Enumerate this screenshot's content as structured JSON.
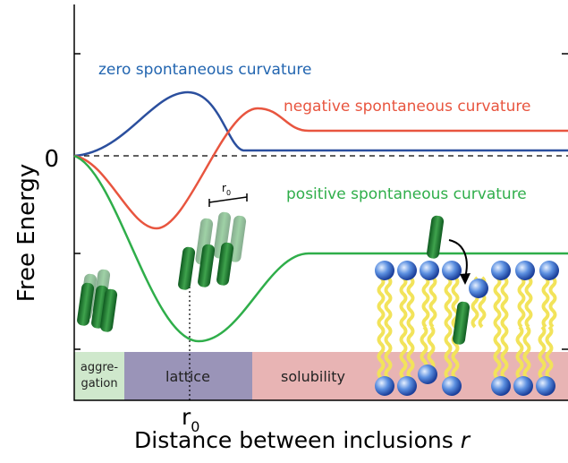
{
  "curves": {
    "zero": "zero spontaneous curvature",
    "negative": "negative spontaneous curvature",
    "positive": "positive spontaneous curvature"
  },
  "y_axis": {
    "title": "Free Energy",
    "zero_label": "0"
  },
  "x_axis": {
    "title": "Distance between inclusions",
    "variable": "r",
    "marker": {
      "symbol": "r",
      "subscript": "0"
    }
  },
  "scale_bar": {
    "symbol": "r",
    "subscript": "0"
  },
  "regions": [
    {
      "label_lines": [
        "aggre-",
        "gation"
      ]
    },
    {
      "label": "lattice"
    },
    {
      "label": "solubility"
    }
  ]
}
